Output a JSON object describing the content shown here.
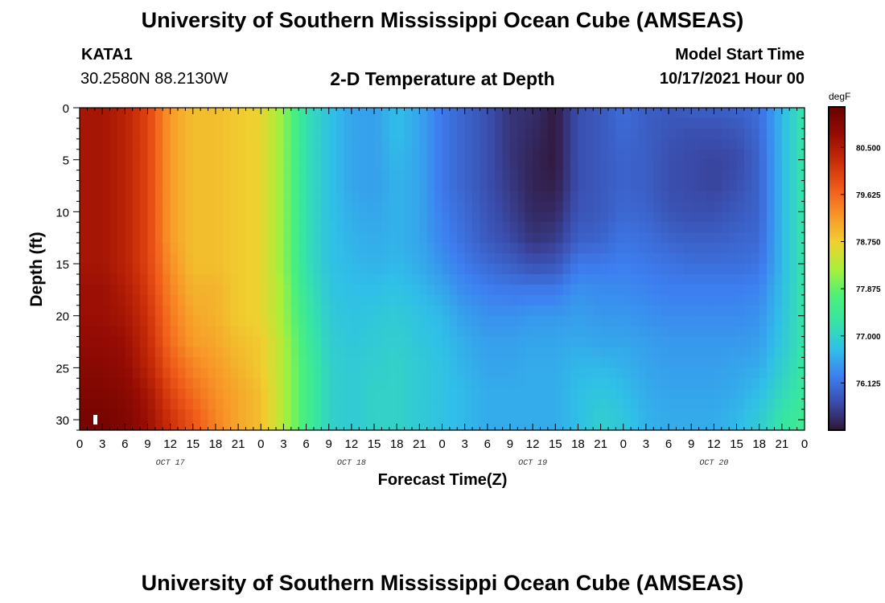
{
  "header": {
    "title": "University of Southern Mississippi Ocean Cube (AMSEAS)",
    "station": "KATA1",
    "coordinates": "30.2580N 88.2130W",
    "subtitle": "2-D Temperature at Depth",
    "model_start_label": "Model Start Time",
    "model_start_value": "10/17/2021 Hour 00"
  },
  "footer": {
    "title": "University of Southern Mississippi Ocean Cube (AMSEAS)"
  },
  "chart_data": {
    "type": "heatmap",
    "title": "2-D Temperature at Depth",
    "xlabel": "Forecast Time(Z)",
    "ylabel": "Depth (ft)",
    "x_hours_range": [
      0,
      96
    ],
    "x_tick_labels": [
      "0",
      "3",
      "6",
      "9",
      "12",
      "15",
      "18",
      "21",
      "0",
      "3",
      "6",
      "9",
      "12",
      "15",
      "18",
      "21",
      "0",
      "3",
      "6",
      "9",
      "12",
      "15",
      "18",
      "21",
      "0",
      "3",
      "6",
      "9",
      "12",
      "15",
      "18",
      "21",
      "0"
    ],
    "date_labels": [
      "OCT 17",
      "OCT 18",
      "OCT 19",
      "OCT 20"
    ],
    "y_range": [
      0,
      31
    ],
    "y_reversed": true,
    "y_ticks": [
      0,
      5,
      10,
      15,
      20,
      25,
      30
    ],
    "colorbar": {
      "unit": "degF",
      "range": [
        75.25,
        81.25
      ],
      "ticks": [
        "80.500",
        "79.625",
        "78.750",
        "77.875",
        "77.000",
        "76.125"
      ],
      "tick_values": [
        80.5,
        79.625,
        78.75,
        77.875,
        77.0,
        76.125
      ],
      "colormap": [
        "#301434",
        "#3a4aa8",
        "#3d7ef0",
        "#30bfe8",
        "#36e3a8",
        "#4cf07a",
        "#a8f03a",
        "#f0d030",
        "#f89528",
        "#f05a1a",
        "#c82c08",
        "#960c04",
        "#6a0200"
      ]
    },
    "depths": [
      0,
      2.5,
      5,
      7.5,
      10,
      12.5,
      15,
      17.5,
      20,
      22.5,
      25,
      27.5,
      30,
      31
    ],
    "profile_hours": [
      0,
      3,
      6,
      9,
      12,
      15,
      18,
      21,
      24,
      27,
      30,
      33,
      36,
      39,
      42,
      45,
      48,
      51,
      54,
      57,
      60,
      63,
      66,
      69,
      72,
      75,
      78,
      81,
      84,
      87,
      90,
      93,
      96
    ],
    "temperature_profiles": [
      [
        80.6,
        80.6,
        80.6,
        80.6,
        80.6,
        80.6,
        80.6,
        80.7,
        80.7,
        80.8,
        80.9,
        81.0,
        81.1,
        81.1
      ],
      [
        80.6,
        80.6,
        80.6,
        80.6,
        80.6,
        80.6,
        80.6,
        80.7,
        80.7,
        80.8,
        80.9,
        81.0,
        81.1,
        81.1
      ],
      [
        80.4,
        80.4,
        80.4,
        80.4,
        80.4,
        80.4,
        80.4,
        80.5,
        80.6,
        80.7,
        80.8,
        80.9,
        81.0,
        81.0
      ],
      [
        80.0,
        80.0,
        80.0,
        80.0,
        80.0,
        80.0,
        80.0,
        80.1,
        80.2,
        80.3,
        80.4,
        80.6,
        80.7,
        80.7
      ],
      [
        79.2,
        79.2,
        79.2,
        79.2,
        79.2,
        79.2,
        79.3,
        79.4,
        79.5,
        79.6,
        79.8,
        80.0,
        80.2,
        80.2
      ],
      [
        78.9,
        78.9,
        78.9,
        78.9,
        78.9,
        78.9,
        78.9,
        79.0,
        79.1,
        79.2,
        79.4,
        79.6,
        79.8,
        79.8
      ],
      [
        78.9,
        78.9,
        78.9,
        78.9,
        78.9,
        78.9,
        78.9,
        79.0,
        79.0,
        79.1,
        79.2,
        79.3,
        79.4,
        79.4
      ],
      [
        78.8,
        78.8,
        78.8,
        78.8,
        78.8,
        78.8,
        78.8,
        78.8,
        78.8,
        78.9,
        79.0,
        79.1,
        79.1,
        79.1
      ],
      [
        78.7,
        78.7,
        78.7,
        78.7,
        78.7,
        78.7,
        78.7,
        78.7,
        78.7,
        78.8,
        78.8,
        78.9,
        78.9,
        78.9
      ],
      [
        78.1,
        78.1,
        78.1,
        78.1,
        78.1,
        78.1,
        78.1,
        78.2,
        78.2,
        78.3,
        78.3,
        78.3,
        78.3,
        78.3
      ],
      [
        77.2,
        77.2,
        77.2,
        77.2,
        77.2,
        77.2,
        77.2,
        77.3,
        77.4,
        77.5,
        77.6,
        77.6,
        77.6,
        77.6
      ],
      [
        76.8,
        76.8,
        76.8,
        76.8,
        76.8,
        76.8,
        76.8,
        76.85,
        76.9,
        76.95,
        77.0,
        77.0,
        77.0,
        77.0
      ],
      [
        76.55,
        76.55,
        76.55,
        76.55,
        76.6,
        76.65,
        76.7,
        76.75,
        76.8,
        76.85,
        76.9,
        76.9,
        76.9,
        76.9
      ],
      [
        76.5,
        76.5,
        76.5,
        76.5,
        76.55,
        76.6,
        76.65,
        76.75,
        76.85,
        76.9,
        76.95,
        77.0,
        77.0,
        77.0
      ],
      [
        76.75,
        76.75,
        76.7,
        76.65,
        76.65,
        76.65,
        76.7,
        76.8,
        76.9,
        76.95,
        77.0,
        77.0,
        77.0,
        77.0
      ],
      [
        76.55,
        76.55,
        76.55,
        76.55,
        76.55,
        76.55,
        76.6,
        76.7,
        76.8,
        76.85,
        76.9,
        76.9,
        76.9,
        76.9
      ],
      [
        76.2,
        76.2,
        76.2,
        76.2,
        76.25,
        76.3,
        76.4,
        76.55,
        76.7,
        76.75,
        76.8,
        76.8,
        76.8,
        76.8
      ],
      [
        76.0,
        76.0,
        76.0,
        76.0,
        76.05,
        76.1,
        76.2,
        76.35,
        76.5,
        76.6,
        76.65,
        76.7,
        76.7,
        76.7
      ],
      [
        75.8,
        75.8,
        75.8,
        75.8,
        75.85,
        75.9,
        76.05,
        76.25,
        76.4,
        76.5,
        76.55,
        76.6,
        76.6,
        76.6
      ],
      [
        75.55,
        75.55,
        75.55,
        75.6,
        75.65,
        75.75,
        75.95,
        76.2,
        76.4,
        76.5,
        76.55,
        76.6,
        76.6,
        76.6
      ],
      [
        75.5,
        75.45,
        75.4,
        75.4,
        75.45,
        75.55,
        75.8,
        76.2,
        76.45,
        76.55,
        76.6,
        76.6,
        76.6,
        76.6
      ],
      [
        75.3,
        75.3,
        75.3,
        75.35,
        75.45,
        75.6,
        75.85,
        76.2,
        76.45,
        76.55,
        76.6,
        76.6,
        76.6,
        76.6
      ],
      [
        75.8,
        75.8,
        75.8,
        75.8,
        75.85,
        75.95,
        76.2,
        76.4,
        76.5,
        76.6,
        76.7,
        76.75,
        76.75,
        76.75
      ],
      [
        75.9,
        75.9,
        75.9,
        75.9,
        75.9,
        76.0,
        76.2,
        76.35,
        76.45,
        76.55,
        76.7,
        76.85,
        76.95,
        76.95
      ],
      [
        76.1,
        76.05,
        76.0,
        76.0,
        76.05,
        76.15,
        76.25,
        76.35,
        76.45,
        76.55,
        76.65,
        76.75,
        76.85,
        76.85
      ],
      [
        75.95,
        75.95,
        75.95,
        75.95,
        76.0,
        76.1,
        76.2,
        76.3,
        76.4,
        76.5,
        76.55,
        76.6,
        76.65,
        76.65
      ],
      [
        75.9,
        75.85,
        75.8,
        75.8,
        75.85,
        76.0,
        76.15,
        76.25,
        76.35,
        76.45,
        76.5,
        76.55,
        76.6,
        76.6
      ],
      [
        75.95,
        75.8,
        75.75,
        75.75,
        75.8,
        75.95,
        76.1,
        76.25,
        76.35,
        76.45,
        76.5,
        76.55,
        76.6,
        76.6
      ],
      [
        75.95,
        75.8,
        75.7,
        75.7,
        75.8,
        75.95,
        76.1,
        76.25,
        76.35,
        76.45,
        76.5,
        76.55,
        76.6,
        76.6
      ],
      [
        76.0,
        75.85,
        75.75,
        75.8,
        75.9,
        76.0,
        76.1,
        76.25,
        76.35,
        76.45,
        76.55,
        76.6,
        76.7,
        76.7
      ],
      [
        76.1,
        76.05,
        76.0,
        76.0,
        76.0,
        76.05,
        76.15,
        76.3,
        76.4,
        76.5,
        76.6,
        76.75,
        76.9,
        76.9
      ],
      [
        76.7,
        76.7,
        76.7,
        76.7,
        76.7,
        76.7,
        76.7,
        76.75,
        76.8,
        76.85,
        76.95,
        77.1,
        77.3,
        77.3
      ],
      [
        77.3,
        77.3,
        77.3,
        77.3,
        77.3,
        77.3,
        77.3,
        77.3,
        77.3,
        77.3,
        77.35,
        77.4,
        77.5,
        77.5
      ]
    ]
  }
}
